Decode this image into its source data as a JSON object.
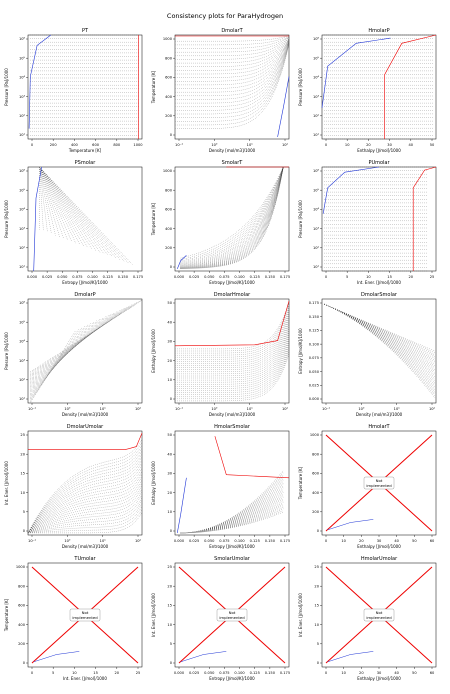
{
  "figure_title": "Consistency plots for ParaHydrogen",
  "not_implemented_label_line1": "Not",
  "not_implemented_label_line2": "implemented",
  "chart_data": [
    {
      "type": "scatter",
      "title": "PT",
      "xlabel": "Temperature [K]",
      "ylabel": "Pressure [Pa]/1000",
      "xticks": [
        "0",
        "200",
        "400",
        "600",
        "800",
        "1000"
      ],
      "yticks": [
        "10¹",
        "10²",
        "10³",
        "10⁴",
        "10⁵",
        "10⁶"
      ],
      "xscale": "linear",
      "yscale": "log",
      "implemented": true
    },
    {
      "type": "scatter",
      "title": "DmolarT",
      "xlabel": "Density [mol/m3]/1000",
      "ylabel": "Temperature [K]",
      "xticks": [
        "10⁻¹",
        "10⁰",
        "10¹",
        "10²"
      ],
      "yticks": [
        "0",
        "200",
        "400",
        "600",
        "800",
        "1000"
      ],
      "xscale": "log",
      "yscale": "linear",
      "implemented": true
    },
    {
      "type": "scatter",
      "title": "HmolarP",
      "xlabel": "Enthalpy [J/mol]/1000",
      "ylabel": "Pressure [Pa]/1000",
      "xticks": [
        "0",
        "10",
        "20",
        "30",
        "40",
        "50"
      ],
      "yticks": [
        "10¹",
        "10²",
        "10³",
        "10⁴",
        "10⁵",
        "10⁶"
      ],
      "xscale": "linear",
      "yscale": "log",
      "implemented": true
    },
    {
      "type": "scatter",
      "title": "PSmolar",
      "xlabel": "Entropy [J/mol/K]/1000",
      "ylabel": "Pressure [Pa]/1000",
      "xticks": [
        "0.000",
        "0.025",
        "0.050",
        "0.075",
        "0.100",
        "0.125",
        "0.150",
        "0.175"
      ],
      "yticks": [
        "10¹",
        "10²",
        "10³",
        "10⁴",
        "10⁵",
        "10⁶"
      ],
      "xscale": "linear",
      "yscale": "log",
      "implemented": true
    },
    {
      "type": "scatter",
      "title": "SmolarT",
      "xlabel": "Entropy [J/mol/K]/1000",
      "ylabel": "Temperature [K]",
      "xticks": [
        "0.000",
        "0.025",
        "0.050",
        "0.075",
        "0.100",
        "0.125",
        "0.150",
        "0.175"
      ],
      "yticks": [
        "0",
        "200",
        "400",
        "600",
        "800",
        "1000"
      ],
      "xscale": "linear",
      "yscale": "linear",
      "implemented": true
    },
    {
      "type": "scatter",
      "title": "PUmolar",
      "xlabel": "Int. Ener. [J/mol]/1000",
      "ylabel": "Pressure [Pa]/1000",
      "xticks": [
        "0",
        "5",
        "10",
        "15",
        "20",
        "25"
      ],
      "yticks": [
        "10¹",
        "10²",
        "10³",
        "10⁴",
        "10⁵",
        "10⁶"
      ],
      "xscale": "linear",
      "yscale": "log",
      "implemented": true
    },
    {
      "type": "scatter",
      "title": "DmolarP",
      "xlabel": "Density [mol/m3]/1000",
      "ylabel": "Pressure [Pa]/1000",
      "xticks": [
        "10⁻¹",
        "10⁰",
        "10¹",
        "10²"
      ],
      "yticks": [
        "10¹",
        "10²",
        "10³",
        "10⁴",
        "10⁵",
        "10⁶"
      ],
      "xscale": "log",
      "yscale": "log",
      "implemented": true
    },
    {
      "type": "scatter",
      "title": "DmolarHmolar",
      "xlabel": "Density [mol/m3]/1000",
      "ylabel": "Enthalpy [J/mol]/1000",
      "xticks": [
        "10⁻¹",
        "10⁰",
        "10¹",
        "10²"
      ],
      "yticks": [
        "0",
        "10",
        "20",
        "30",
        "40",
        "50"
      ],
      "xscale": "log",
      "yscale": "linear",
      "implemented": true
    },
    {
      "type": "scatter",
      "title": "DmolarSmolar",
      "xlabel": "Density [mol/m3]/1000",
      "ylabel": "Entropy [J/mol/K]/1000",
      "xticks": [
        "10⁻¹",
        "10⁰",
        "10¹",
        "10²"
      ],
      "yticks": [
        "0.000",
        "0.025",
        "0.050",
        "0.075",
        "0.100",
        "0.125",
        "0.150",
        "0.175"
      ],
      "xscale": "log",
      "yscale": "linear",
      "implemented": true
    },
    {
      "type": "scatter",
      "title": "DmolarUmolar",
      "xlabel": "Density [mol/m3]/1000",
      "ylabel": "Int. Ener. [J/mol]/1000",
      "xticks": [
        "10⁻¹",
        "10⁰",
        "10¹",
        "10²"
      ],
      "yticks": [
        "0",
        "5",
        "10",
        "15",
        "20",
        "25"
      ],
      "xscale": "log",
      "yscale": "linear",
      "implemented": true
    },
    {
      "type": "scatter",
      "title": "HmolarSmolar",
      "xlabel": "Entropy [J/mol/K]/1000",
      "ylabel": "Enthalpy [J/mol]/1000",
      "xticks": [
        "0.000",
        "0.025",
        "0.050",
        "0.075",
        "0.100",
        "0.125",
        "0.150",
        "0.175"
      ],
      "yticks": [
        "0",
        "10",
        "20",
        "30",
        "40",
        "50"
      ],
      "xscale": "linear",
      "yscale": "linear",
      "implemented": true
    },
    {
      "type": "scatter",
      "title": "HmolarT",
      "xlabel": "Enthalpy [J/mol]/1000",
      "ylabel": "Temperature [K]",
      "xticks": [
        "0",
        "10",
        "20",
        "30",
        "40",
        "50",
        "60"
      ],
      "yticks": [
        "0",
        "200",
        "400",
        "600",
        "800",
        "1000"
      ],
      "xscale": "linear",
      "yscale": "linear",
      "implemented": false
    },
    {
      "type": "scatter",
      "title": "TUmolar",
      "xlabel": "Int. Ener. [J/mol]/1000",
      "ylabel": "Temperature [K]",
      "xticks": [
        "0",
        "5",
        "10",
        "15",
        "20",
        "25"
      ],
      "yticks": [
        "0",
        "200",
        "400",
        "600",
        "800",
        "1000"
      ],
      "xscale": "linear",
      "yscale": "linear",
      "implemented": false
    },
    {
      "type": "scatter",
      "title": "SmolarUmolar",
      "xlabel": "Entropy [J/mol/K]/1000",
      "ylabel": "Int. Ener. [J/mol]/1000",
      "xticks": [
        "0.000",
        "0.025",
        "0.050",
        "0.075",
        "0.100",
        "0.125",
        "0.150",
        "0.175"
      ],
      "yticks": [
        "0",
        "5",
        "10",
        "15",
        "20",
        "25"
      ],
      "xscale": "linear",
      "yscale": "linear",
      "implemented": false
    },
    {
      "type": "scatter",
      "title": "HmolarUmolar",
      "xlabel": "Enthalpy [J/mol]/1000",
      "ylabel": "Int. Ener. [J/mol]/1000",
      "xticks": [
        "0",
        "10",
        "20",
        "30",
        "40",
        "50",
        "60"
      ],
      "yticks": [
        "0",
        "5",
        "10",
        "15",
        "20",
        "25"
      ],
      "xscale": "linear",
      "yscale": "linear",
      "implemented": false
    }
  ]
}
